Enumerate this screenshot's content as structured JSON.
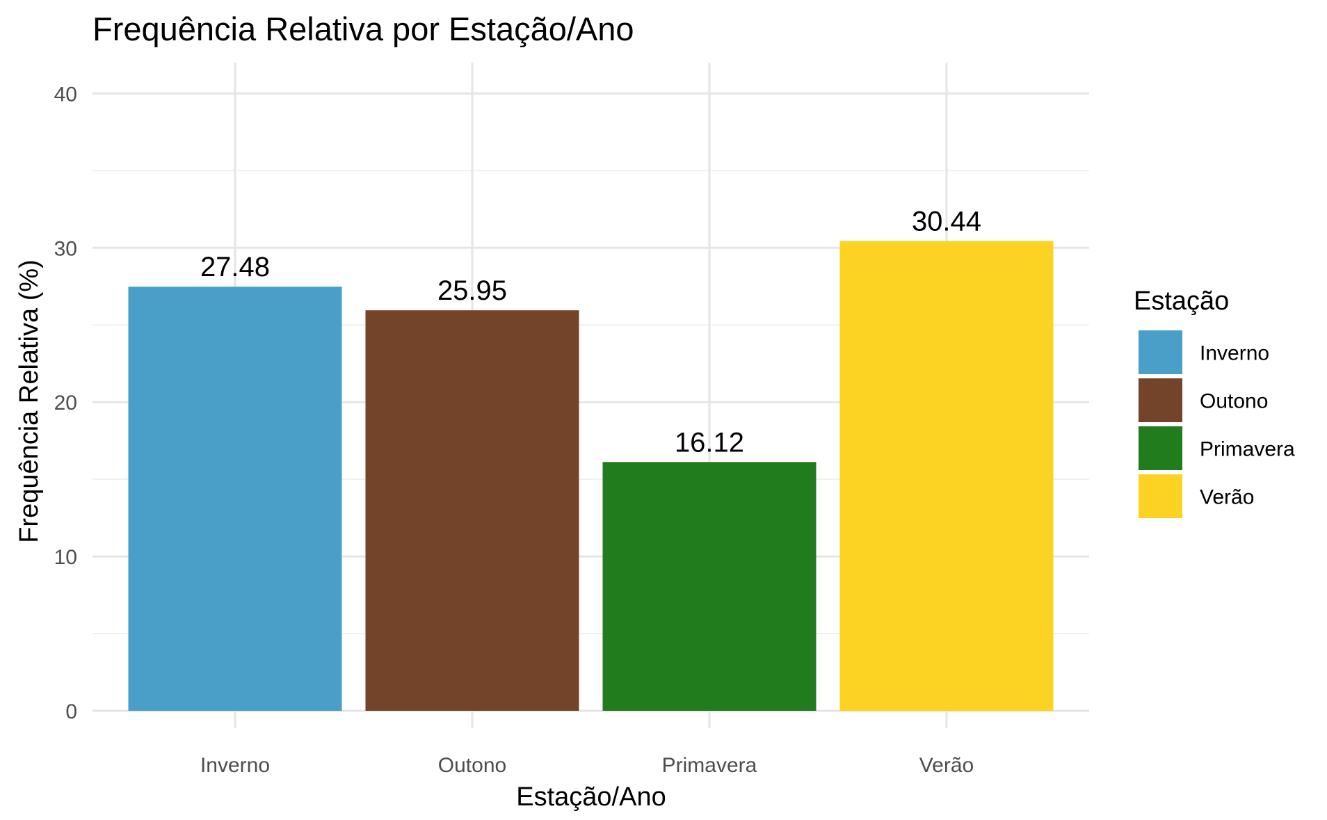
{
  "chart_data": {
    "type": "bar",
    "title": "Frequência Relativa por Estação/Ano",
    "xlabel": "Estação/Ano",
    "ylabel": "Frequência Relativa (%)",
    "categories": [
      "Inverno",
      "Outono",
      "Primavera",
      "Verão"
    ],
    "values": [
      27.48,
      25.95,
      16.12,
      30.44
    ],
    "data_labels": [
      "27.48",
      "25.95",
      "16.12",
      "30.44"
    ],
    "colors": [
      "#4a9fc8",
      "#73432a",
      "#217c1d",
      "#fcd322"
    ],
    "ylim": [
      0,
      42
    ],
    "yticks": [
      0,
      10,
      20,
      30,
      40
    ],
    "grid": true,
    "legend": {
      "title": "Estação",
      "placement": "right",
      "entries": [
        "Inverno",
        "Outono",
        "Primavera",
        "Verão"
      ]
    }
  }
}
